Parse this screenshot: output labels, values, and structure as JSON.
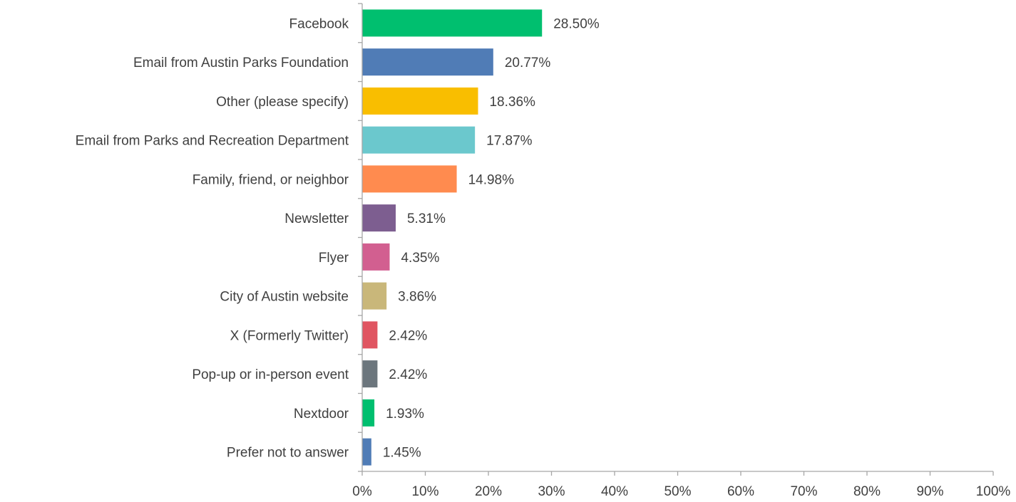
{
  "chart_data": {
    "type": "bar",
    "orientation": "horizontal",
    "categories": [
      "Facebook",
      "Email from Austin Parks Foundation",
      "Other (please specify)",
      "Email from Parks and Recreation Department",
      "Family, friend, or neighbor",
      "Newsletter",
      "Flyer",
      "City of Austin website",
      "X (Formerly Twitter)",
      "Pop-up or in-person event",
      "Nextdoor",
      "Prefer not to answer"
    ],
    "values": [
      28.5,
      20.77,
      18.36,
      17.87,
      14.98,
      5.31,
      4.35,
      3.86,
      2.42,
      2.42,
      1.93,
      1.45
    ],
    "value_labels": [
      "28.50%",
      "20.77%",
      "18.36%",
      "17.87%",
      "14.98%",
      "5.31%",
      "4.35%",
      "3.86%",
      "2.42%",
      "2.42%",
      "1.93%",
      "1.45%"
    ],
    "colors": [
      "#00bf6f",
      "#507cb6",
      "#f9be00",
      "#6bc8cd",
      "#ff8b4f",
      "#7d5e90",
      "#d25f90",
      "#c9b77a",
      "#e05561",
      "#6c767d",
      "#00bf6f",
      "#507cb6"
    ],
    "xlim": [
      0,
      100
    ],
    "xticks": [
      "0%",
      "10%",
      "20%",
      "30%",
      "40%",
      "50%",
      "60%",
      "70%",
      "80%",
      "90%",
      "100%"
    ],
    "title": "",
    "xlabel": "",
    "ylabel": "",
    "grid": false,
    "legend": "none"
  }
}
